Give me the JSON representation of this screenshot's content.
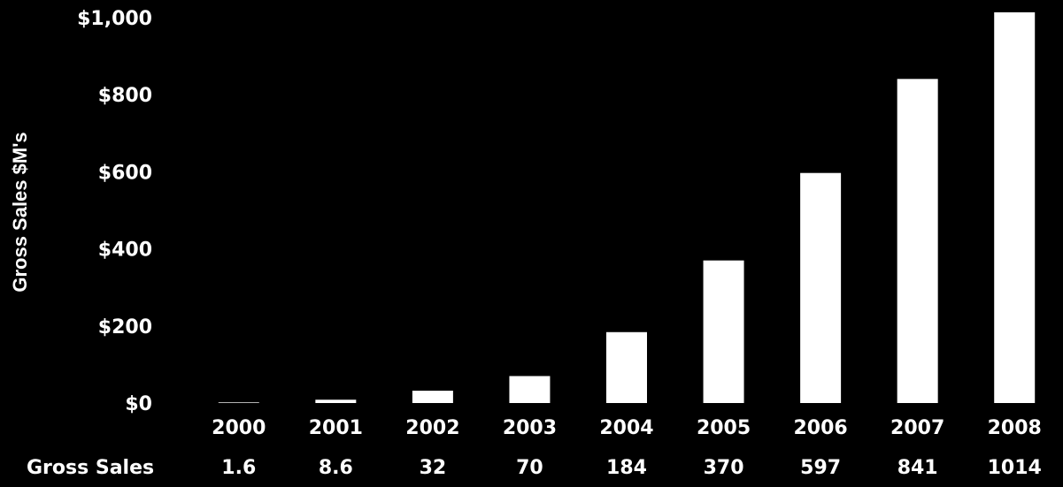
{
  "chart_data": {
    "type": "bar",
    "title": "",
    "xlabel": "",
    "ylabel": "Gross Sales $M's",
    "categories": [
      "2000",
      "2001",
      "2002",
      "2003",
      "2004",
      "2005",
      "2006",
      "2007",
      "2008"
    ],
    "values": [
      1.6,
      8.6,
      32,
      70,
      184,
      370,
      597,
      841,
      1014
    ],
    "ylim": [
      0,
      1000
    ],
    "yticks": [
      0,
      200,
      400,
      600,
      800,
      1000
    ],
    "ytick_labels": [
      "$0",
      "$200",
      "$400",
      "$600",
      "$800",
      "$1,000"
    ],
    "grid": false,
    "legend": "none",
    "data_table": {
      "row_label": "Gross Sales",
      "values": [
        "1.6",
        "8.6",
        "32",
        "70",
        "184",
        "370",
        "597",
        "841",
        "1014"
      ]
    },
    "colors": {
      "background": "#000000",
      "bar": "#ffffff",
      "text": "#ffffff"
    }
  }
}
